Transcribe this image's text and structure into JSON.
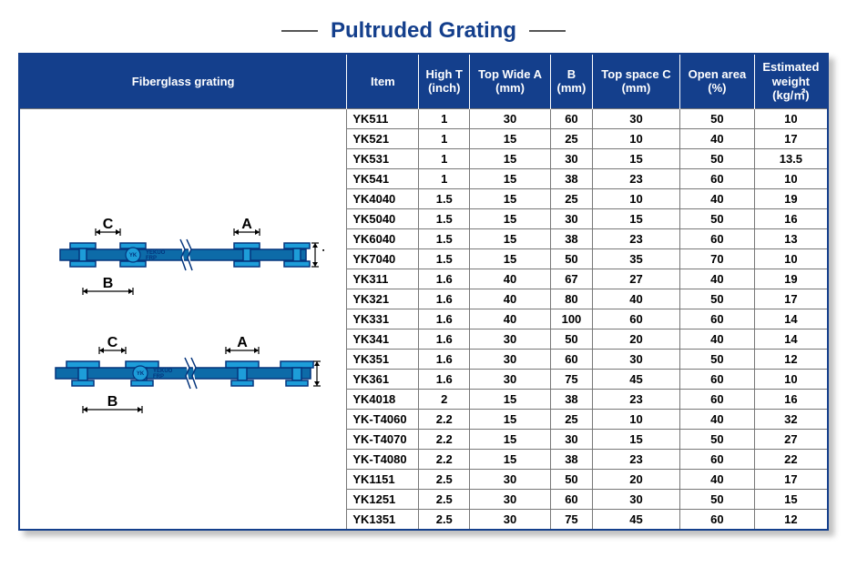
{
  "title": "Pultruded Grating",
  "left_header": "Fiberglass grating",
  "columns": [
    "Item",
    "High T (inch)",
    "Top Wide A (mm)",
    "B (mm)",
    "Top space C (mm)",
    "Open area (%)",
    "Estimated weight (kg/㎡)"
  ],
  "rows": [
    [
      "YK511",
      "1",
      "30",
      "60",
      "30",
      "50",
      "10"
    ],
    [
      "YK521",
      "1",
      "15",
      "25",
      "10",
      "40",
      "17"
    ],
    [
      "YK531",
      "1",
      "15",
      "30",
      "15",
      "50",
      "13.5"
    ],
    [
      "YK541",
      "1",
      "15",
      "38",
      "23",
      "60",
      "10"
    ],
    [
      "YK4040",
      "1.5",
      "15",
      "25",
      "10",
      "40",
      "19"
    ],
    [
      "YK5040",
      "1.5",
      "15",
      "30",
      "15",
      "50",
      "16"
    ],
    [
      "YK6040",
      "1.5",
      "15",
      "38",
      "23",
      "60",
      "13"
    ],
    [
      "YK7040",
      "1.5",
      "15",
      "50",
      "35",
      "70",
      "10"
    ],
    [
      "YK311",
      "1.6",
      "40",
      "67",
      "27",
      "40",
      "19"
    ],
    [
      "YK321",
      "1.6",
      "40",
      "80",
      "40",
      "50",
      "17"
    ],
    [
      "YK331",
      "1.6",
      "40",
      "100",
      "60",
      "60",
      "14"
    ],
    [
      "YK341",
      "1.6",
      "30",
      "50",
      "20",
      "40",
      "14"
    ],
    [
      "YK351",
      "1.6",
      "30",
      "60",
      "30",
      "50",
      "12"
    ],
    [
      "YK361",
      "1.6",
      "30",
      "75",
      "45",
      "60",
      "10"
    ],
    [
      "YK4018",
      "2",
      "15",
      "38",
      "23",
      "60",
      "16"
    ],
    [
      "YK-T4060",
      "2.2",
      "15",
      "25",
      "10",
      "40",
      "32"
    ],
    [
      "YK-T4070",
      "2.2",
      "15",
      "30",
      "15",
      "50",
      "27"
    ],
    [
      "YK-T4080",
      "2.2",
      "15",
      "38",
      "23",
      "60",
      "22"
    ],
    [
      "YK1151",
      "2.5",
      "30",
      "50",
      "20",
      "40",
      "17"
    ],
    [
      "YK1251",
      "2.5",
      "30",
      "60",
      "30",
      "50",
      "15"
    ],
    [
      "YK1351",
      "2.5",
      "30",
      "75",
      "45",
      "60",
      "12"
    ]
  ],
  "labels": {
    "A": "A",
    "B": "B",
    "C": "C",
    "T": "T"
  },
  "colors": {
    "header_bg": "#143f8c",
    "header_text": "#ffffff",
    "bar_fill": "#1d9dd9",
    "bar_stroke": "#04347c"
  }
}
